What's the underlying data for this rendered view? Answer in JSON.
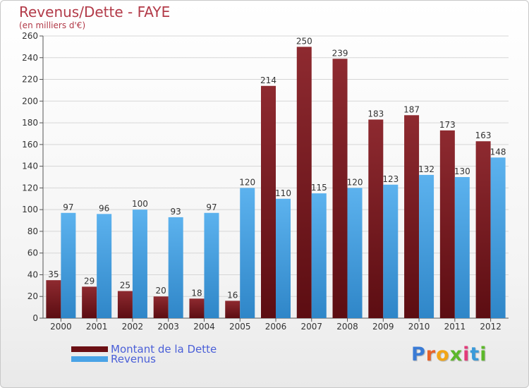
{
  "title": "Revenus/Dette - FAYE",
  "subtitle": "(en milliers d'€)",
  "logo_text": "Proxiti",
  "colors": {
    "dette": "#7a1e22",
    "revenus": "#4aa3e6",
    "title": "#b23a48",
    "legend_text": "#4a5fd8"
  },
  "legend": [
    {
      "label": "Montant de la Dette",
      "color": "#6b0f14"
    },
    {
      "label": "Revenus",
      "color": "#4aa3e6"
    }
  ],
  "chart_data": {
    "type": "bar",
    "title": "Revenus/Dette - FAYE",
    "subtitle": "(en milliers d'€)",
    "categories": [
      "2000",
      "2001",
      "2002",
      "2003",
      "2004",
      "2005",
      "2006",
      "2007",
      "2008",
      "2009",
      "2010",
      "2011",
      "2012"
    ],
    "series": [
      {
        "name": "Montant de la Dette",
        "values": [
          35,
          29,
          25,
          20,
          18,
          16,
          214,
          250,
          239,
          183,
          187,
          173,
          163
        ]
      },
      {
        "name": "Revenus",
        "values": [
          97,
          96,
          100,
          93,
          97,
          120,
          110,
          115,
          120,
          123,
          132,
          130,
          148
        ]
      }
    ],
    "yticks": [
      0,
      20,
      40,
      60,
      80,
      100,
      120,
      140,
      160,
      180,
      200,
      220,
      240,
      260
    ],
    "ylim": [
      0,
      260
    ],
    "grid": true,
    "legend_position": "bottom-left"
  }
}
